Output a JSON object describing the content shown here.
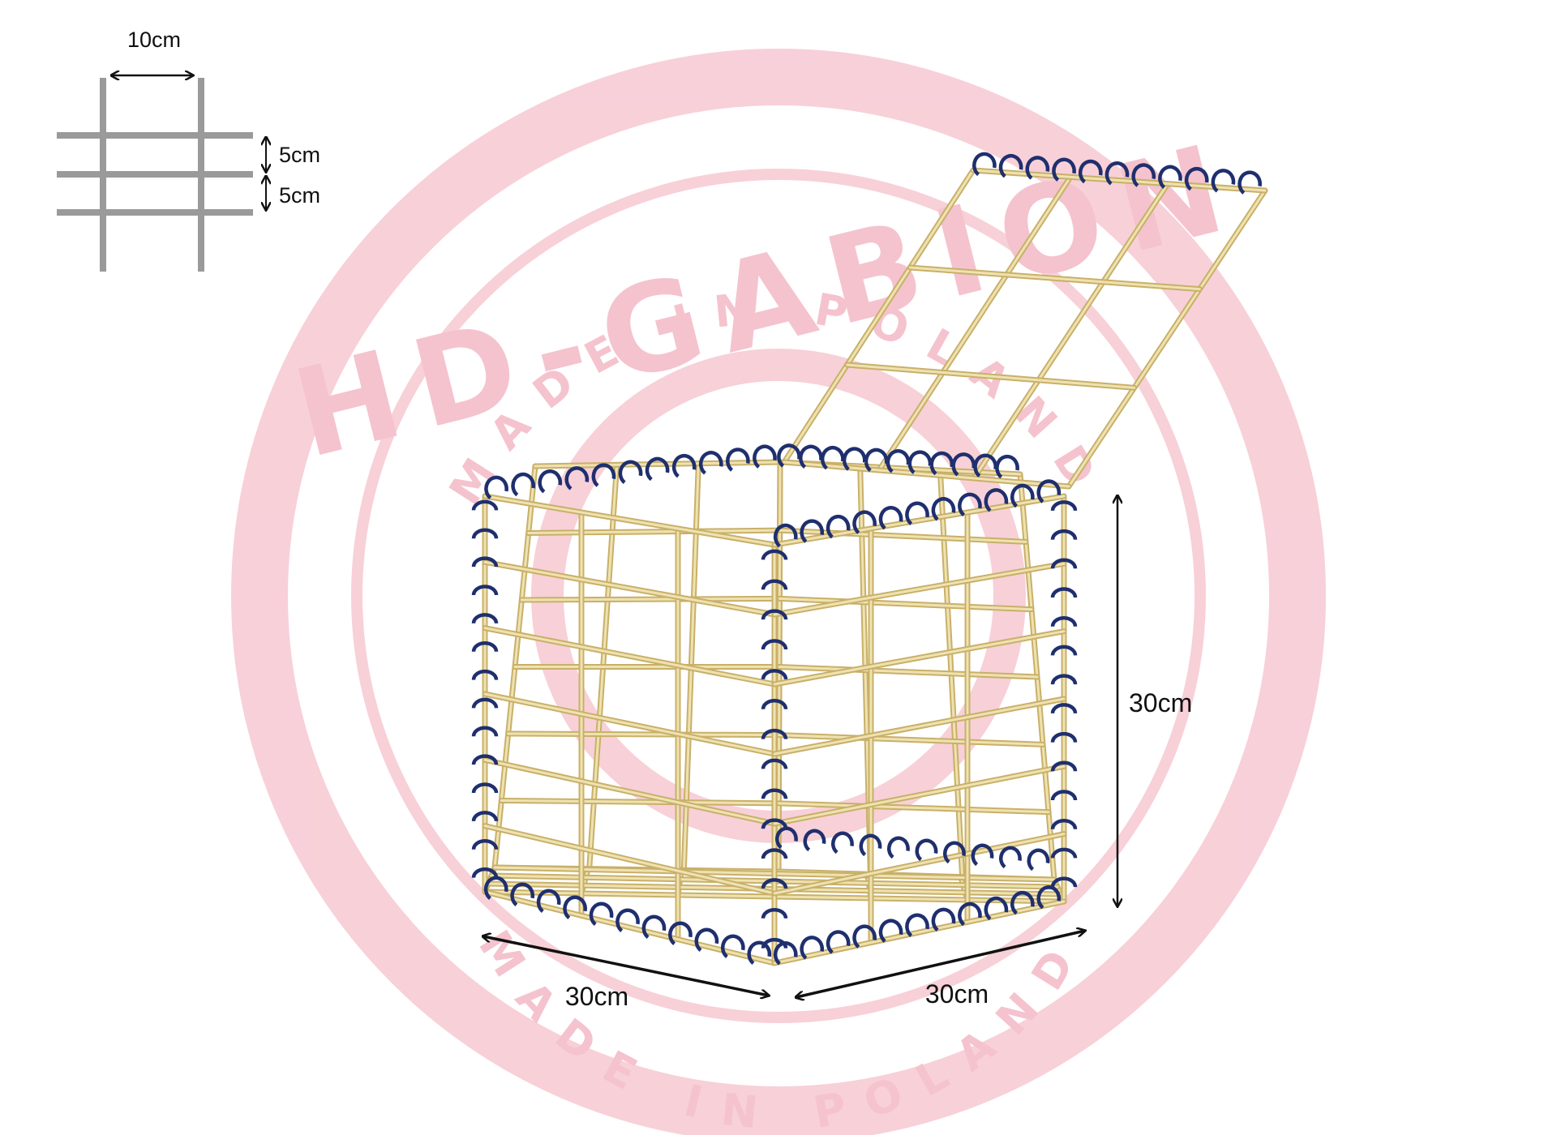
{
  "watermark": {
    "top_text": "MADE IN POLAND",
    "bottom_text": "MADE IN POLAND",
    "brand_text": "HD-GABION",
    "color": "#f3b9c6"
  },
  "mesh_legend": {
    "horizontal_spacing": "10cm",
    "vertical_spacing_1": "5cm",
    "vertical_spacing_2": "5cm",
    "wire_color": "#999999"
  },
  "dimensions": {
    "width_left": "30cm",
    "width_right": "30cm",
    "height": "30cm"
  },
  "colors": {
    "wire": "#c8b06a",
    "wire_highlight": "#efe2b0",
    "spiral": "#1f2f6e"
  }
}
